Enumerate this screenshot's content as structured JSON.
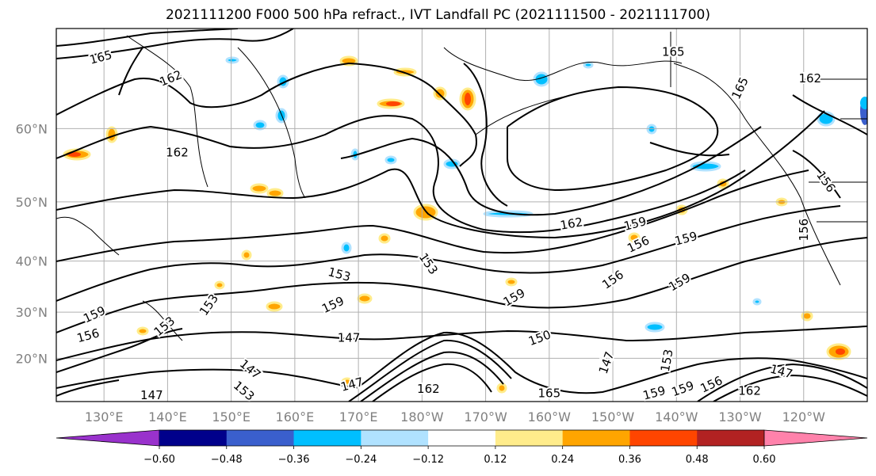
{
  "chart_data": {
    "type": "contour-map",
    "title": "2021111200 F000 500 hPa refract., IVT Landfall PC (2021111500 - 2021111700)",
    "lat_ticks": [
      "20°N",
      "30°N",
      "40°N",
      "50°N",
      "60°N"
    ],
    "lat_values": [
      20,
      30,
      40,
      50,
      60
    ],
    "lon_ticks": [
      "130°E",
      "140°E",
      "150°E",
      "160°E",
      "170°E",
      "180°W",
      "170°W",
      "160°W",
      "150°W",
      "140°W",
      "130°W",
      "120°W"
    ],
    "lon_values": [
      130,
      140,
      150,
      160,
      170,
      180,
      190,
      200,
      210,
      220,
      230,
      240
    ],
    "lat_range": [
      10,
      70
    ],
    "lon_range": [
      122.5,
      250
    ],
    "grid": true,
    "contour_levels_labeled": [
      147,
      150,
      153,
      156,
      159,
      162,
      165
    ],
    "colorbar": {
      "ticks": [
        "−0.60",
        "−0.48",
        "−0.36",
        "−0.24",
        "−0.12",
        "0.12",
        "0.24",
        "0.36",
        "0.48",
        "0.60"
      ],
      "bins": [
        {
          "color": "#9932cc"
        },
        {
          "color": "#00008b"
        },
        {
          "color": "#3a5fcd"
        },
        {
          "color": "#00bfff"
        },
        {
          "color": "#b0e2ff"
        },
        {
          "color": "#ffffff"
        },
        {
          "color": "#ffec8b"
        },
        {
          "color": "#ffa500"
        },
        {
          "color": "#ff4500"
        },
        {
          "color": "#b22222"
        },
        {
          "color": "#ff82ab"
        }
      ],
      "extend": "both"
    },
    "contour_labels": [
      {
        "text": "165",
        "lon": 129.5,
        "lat": 67.5,
        "rot": -15
      },
      {
        "text": "162",
        "lon": 140.5,
        "lat": 65.5,
        "rot": -22
      },
      {
        "text": "162",
        "lon": 141.5,
        "lat": 57.0,
        "rot": 0
      },
      {
        "text": "165",
        "lon": 219.5,
        "lat": 68.0,
        "rot": 0
      },
      {
        "text": "165",
        "lon": 230.0,
        "lat": 64.5,
        "rot": -65
      },
      {
        "text": "162",
        "lon": 241.0,
        "lat": 65.5,
        "rot": 0
      },
      {
        "text": "156",
        "lon": 243.5,
        "lat": 53.0,
        "rot": 55
      },
      {
        "text": "156",
        "lon": 240.0,
        "lat": 45.5,
        "rot": -90
      },
      {
        "text": "162",
        "lon": 203.5,
        "lat": 46.5,
        "rot": -10
      },
      {
        "text": "159",
        "lon": 213.5,
        "lat": 46.5,
        "rot": -15
      },
      {
        "text": "156",
        "lon": 214.0,
        "lat": 43.0,
        "rot": -25
      },
      {
        "text": "159",
        "lon": 221.5,
        "lat": 44.0,
        "rot": -15
      },
      {
        "text": "153",
        "lon": 181.0,
        "lat": 39.5,
        "rot": 55
      },
      {
        "text": "153",
        "lon": 167.0,
        "lat": 37.5,
        "rot": 15
      },
      {
        "text": "156",
        "lon": 210.0,
        "lat": 36.5,
        "rot": -35
      },
      {
        "text": "159",
        "lon": 220.5,
        "lat": 36.0,
        "rot": -30
      },
      {
        "text": "159",
        "lon": 194.5,
        "lat": 33.0,
        "rot": -30
      },
      {
        "text": "159",
        "lon": 166.0,
        "lat": 31.5,
        "rot": -25
      },
      {
        "text": "153",
        "lon": 146.5,
        "lat": 31.5,
        "rot": -55
      },
      {
        "text": "159",
        "lon": 128.5,
        "lat": 29.5,
        "rot": -25
      },
      {
        "text": "153",
        "lon": 139.5,
        "lat": 27.0,
        "rot": -40
      },
      {
        "text": "156",
        "lon": 127.5,
        "lat": 25.0,
        "rot": -15
      },
      {
        "text": "147",
        "lon": 168.5,
        "lat": 24.5,
        "rot": 0
      },
      {
        "text": "150",
        "lon": 198.5,
        "lat": 24.5,
        "rot": -20
      },
      {
        "text": "147",
        "lon": 209.0,
        "lat": 19.0,
        "rot": -70
      },
      {
        "text": "153",
        "lon": 218.5,
        "lat": 19.5,
        "rot": -80
      },
      {
        "text": "147",
        "lon": 153.0,
        "lat": 17.5,
        "rot": 40
      },
      {
        "text": "147",
        "lon": 236.5,
        "lat": 17.0,
        "rot": 15
      },
      {
        "text": "147",
        "lon": 169.0,
        "lat": 14.0,
        "rot": -15
      },
      {
        "text": "153",
        "lon": 152.0,
        "lat": 12.5,
        "rot": 40
      },
      {
        "text": "162",
        "lon": 181.0,
        "lat": 13.0,
        "rot": 0
      },
      {
        "text": "165",
        "lon": 200.0,
        "lat": 12.0,
        "rot": 0
      },
      {
        "text": "156",
        "lon": 225.5,
        "lat": 14.0,
        "rot": -25
      },
      {
        "text": "159",
        "lon": 221.0,
        "lat": 13.0,
        "rot": -20
      },
      {
        "text": "159",
        "lon": 216.5,
        "lat": 12.0,
        "rot": -15
      },
      {
        "text": "162",
        "lon": 231.5,
        "lat": 12.5,
        "rot": 0
      },
      {
        "text": "147",
        "lon": 137.5,
        "lat": 11.5,
        "rot": 0
      }
    ]
  }
}
